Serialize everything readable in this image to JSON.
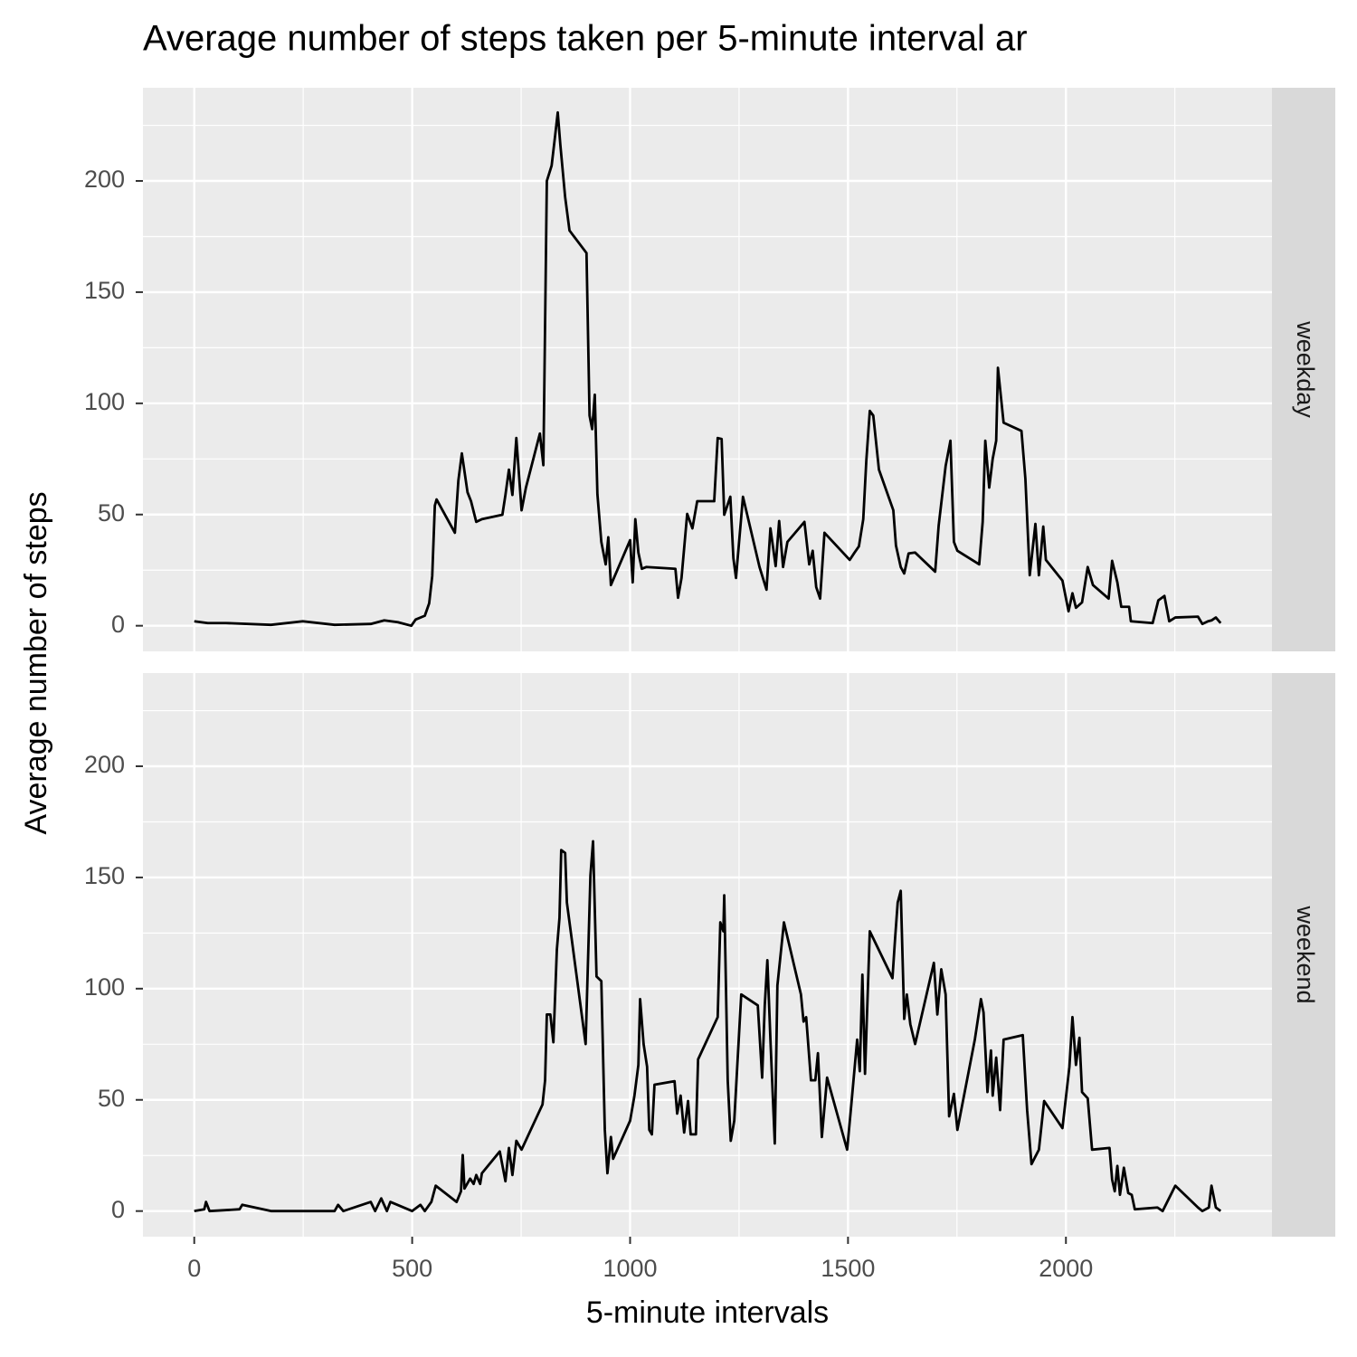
{
  "chart_data": {
    "type": "line",
    "title": "Average number of steps taken per 5-minute interval ar",
    "x_label": "5-minute intervals",
    "y_label": "Average number of steps",
    "xlim": [
      -117.75,
      2472.75
    ],
    "ylim": [
      -11.52,
      241.9
    ],
    "xticks": [
      0,
      500,
      1000,
      1500,
      2000
    ],
    "yticks": [
      0,
      50,
      100,
      150,
      200
    ],
    "xminor": [
      250,
      750,
      1250,
      1750,
      2250
    ],
    "yminor": [
      25,
      75,
      125,
      175,
      225
    ],
    "grid": true,
    "series": [
      {
        "name": "weekday",
        "color": "#000000",
        "x": [
          0,
          31,
          73,
          176,
          249,
          322,
          405,
          436,
          467,
          498,
          508,
          529,
          539,
          546,
          552,
          556,
          598,
          606,
          614,
          627,
          635,
          647,
          660,
          707,
          714,
          722,
          730,
          739,
          751,
          761,
          793,
          801,
          809,
          820,
          828,
          834,
          840,
          851,
          861,
          900,
          907,
          913,
          919,
          925,
          934,
          944,
          950,
          956,
          1000,
          1006,
          1012,
          1019,
          1027,
          1037,
          1104,
          1110,
          1118,
          1131,
          1143,
          1154,
          1193,
          1201,
          1210,
          1216,
          1230,
          1237,
          1243,
          1259,
          1297,
          1313,
          1322,
          1334,
          1342,
          1351,
          1361,
          1400,
          1411,
          1419,
          1427,
          1436,
          1446,
          1504,
          1515,
          1525,
          1535,
          1542,
          1550,
          1558,
          1571,
          1604,
          1610,
          1621,
          1629,
          1639,
          1654,
          1700,
          1708,
          1724,
          1735,
          1743,
          1751,
          1801,
          1809,
          1815,
          1824,
          1832,
          1840,
          1844,
          1857,
          1898,
          1907,
          1917,
          1930,
          1938,
          1948,
          1954,
          1992,
          2006,
          2015,
          2023,
          2037,
          2050,
          2062,
          2098,
          2106,
          2118,
          2127,
          2145,
          2149,
          2199,
          2212,
          2226,
          2237,
          2251,
          2303,
          2313,
          2326,
          2334,
          2344,
          2355
        ],
        "values": [
          2.0,
          1.2,
          1.2,
          0.4,
          2.0,
          0.4,
          0.8,
          2.4,
          1.6,
          0,
          2.8,
          4.5,
          10.1,
          22.3,
          54.0,
          56.8,
          41.8,
          65.3,
          77.5,
          60.0,
          56.0,
          46.7,
          47.9,
          49.9,
          58.8,
          70.2,
          58.8,
          84.4,
          51.9,
          62.1,
          86.4,
          72.2,
          200.0,
          206.9,
          220.3,
          230.8,
          216.2,
          192.7,
          177.7,
          167.6,
          94.5,
          88.4,
          103.9,
          59.2,
          37.7,
          27.6,
          39.8,
          18.3,
          38.5,
          19.5,
          47.9,
          32.9,
          25.6,
          26.4,
          25.6,
          12.6,
          21.5,
          50.3,
          43.8,
          56.0,
          56.0,
          84.4,
          84.0,
          49.9,
          58.0,
          30.4,
          21.5,
          58.0,
          26.4,
          16.2,
          43.8,
          26.8,
          47.1,
          26.4,
          37.7,
          46.7,
          27.6,
          33.7,
          17.4,
          12.2,
          41.8,
          29.6,
          32.9,
          35.7,
          47.9,
          74.2,
          96.6,
          94.5,
          70.2,
          51.9,
          36.1,
          26.4,
          23.5,
          32.5,
          32.9,
          24.3,
          45.0,
          71.8,
          83.2,
          37.7,
          33.7,
          27.6,
          46.7,
          83.2,
          62.1,
          75.1,
          83.2,
          116.0,
          91.3,
          87.6,
          66.1,
          22.7,
          45.8,
          22.7,
          44.6,
          29.6,
          20.3,
          6.5,
          14.6,
          8.1,
          10.5,
          26.4,
          18.3,
          12.2,
          29.2,
          19.5,
          8.5,
          8.5,
          2.0,
          1.2,
          11.4,
          13.4,
          2.0,
          3.7,
          4.1,
          0.8,
          2.0,
          2.4,
          3.7,
          1.2
        ]
      },
      {
        "name": "weekend",
        "color": "#000000",
        "x": [
          0,
          23,
          27,
          35,
          104,
          110,
          176,
          322,
          330,
          342,
          405,
          415,
          429,
          442,
          450,
          500,
          519,
          529,
          544,
          554,
          602,
          612,
          616,
          620,
          633,
          641,
          647,
          656,
          660,
          701,
          714,
          722,
          730,
          739,
          751,
          799,
          805,
          809,
          817,
          824,
          832,
          838,
          842,
          851,
          855,
          898,
          909,
          915,
          923,
          934,
          942,
          948,
          956,
          961,
          1000,
          1010,
          1019,
          1023,
          1031,
          1039,
          1044,
          1050,
          1056,
          1102,
          1108,
          1116,
          1124,
          1133,
          1139,
          1151,
          1156,
          1201,
          1207,
          1214,
          1216,
          1224,
          1231,
          1239,
          1255,
          1293,
          1303,
          1309,
          1315,
          1322,
          1332,
          1338,
          1353,
          1392,
          1398,
          1404,
          1415,
          1425,
          1431,
          1440,
          1452,
          1498,
          1508,
          1521,
          1527,
          1533,
          1539,
          1550,
          1602,
          1608,
          1614,
          1621,
          1629,
          1635,
          1643,
          1654,
          1697,
          1705,
          1714,
          1724,
          1732,
          1743,
          1751,
          1791,
          1805,
          1811,
          1820,
          1828,
          1832,
          1840,
          1849,
          1857,
          1901,
          1911,
          1921,
          1938,
          1950,
          1992,
          2008,
          2015,
          2023,
          2031,
          2037,
          2050,
          2060,
          2100,
          2106,
          2112,
          2118,
          2124,
          2133,
          2143,
          2151,
          2158,
          2210,
          2222,
          2251,
          2303,
          2313,
          2328,
          2334,
          2344,
          2355
        ],
        "values": [
          0,
          0.8,
          4.1,
          0,
          0.8,
          2.8,
          0,
          0,
          2.8,
          0,
          4.1,
          0,
          5.7,
          0,
          4.1,
          0,
          2.8,
          0,
          4.1,
          11.4,
          4.1,
          8.9,
          25.2,
          10.1,
          14.6,
          12.2,
          16.2,
          12.2,
          17.0,
          26.8,
          13.4,
          28.4,
          16.2,
          31.6,
          27.6,
          47.9,
          58.8,
          88.4,
          88.4,
          75.9,
          117.6,
          131.8,
          162.3,
          161.0,
          138.7,
          75.1,
          150.9,
          166.3,
          105.5,
          103.4,
          36.5,
          17.0,
          33.3,
          23.5,
          40.6,
          51.9,
          65.7,
          95.3,
          75.1,
          64.9,
          36.5,
          34.5,
          56.8,
          58.4,
          43.8,
          51.9,
          35.3,
          49.5,
          34.5,
          34.5,
          68.2,
          87.2,
          129.8,
          125.8,
          142.0,
          58.8,
          31.6,
          40.6,
          97.4,
          92.5,
          60.0,
          92.5,
          112.8,
          77.1,
          30.4,
          101.4,
          129.8,
          97.4,
          85.2,
          87.2,
          58.8,
          58.8,
          71.0,
          33.3,
          60.0,
          27.6,
          48.7,
          77.1,
          62.9,
          106.3,
          61.7,
          125.8,
          104.7,
          122.5,
          138.7,
          144.0,
          86.4,
          97.4,
          84.0,
          75.1,
          111.6,
          88.4,
          108.7,
          97.4,
          42.6,
          52.7,
          36.5,
          77.1,
          95.3,
          89.2,
          53.5,
          72.2,
          51.9,
          69.0,
          45.4,
          77.1,
          79.1,
          45.4,
          21.1,
          27.6,
          49.5,
          37.3,
          64.9,
          87.2,
          65.7,
          77.9,
          53.5,
          50.7,
          27.6,
          28.4,
          14.2,
          8.9,
          20.3,
          7.3,
          19.5,
          8.1,
          7.3,
          0.8,
          1.6,
          0,
          11.4,
          1.6,
          0,
          1.6,
          11.4,
          1.6,
          0
        ]
      }
    ]
  }
}
